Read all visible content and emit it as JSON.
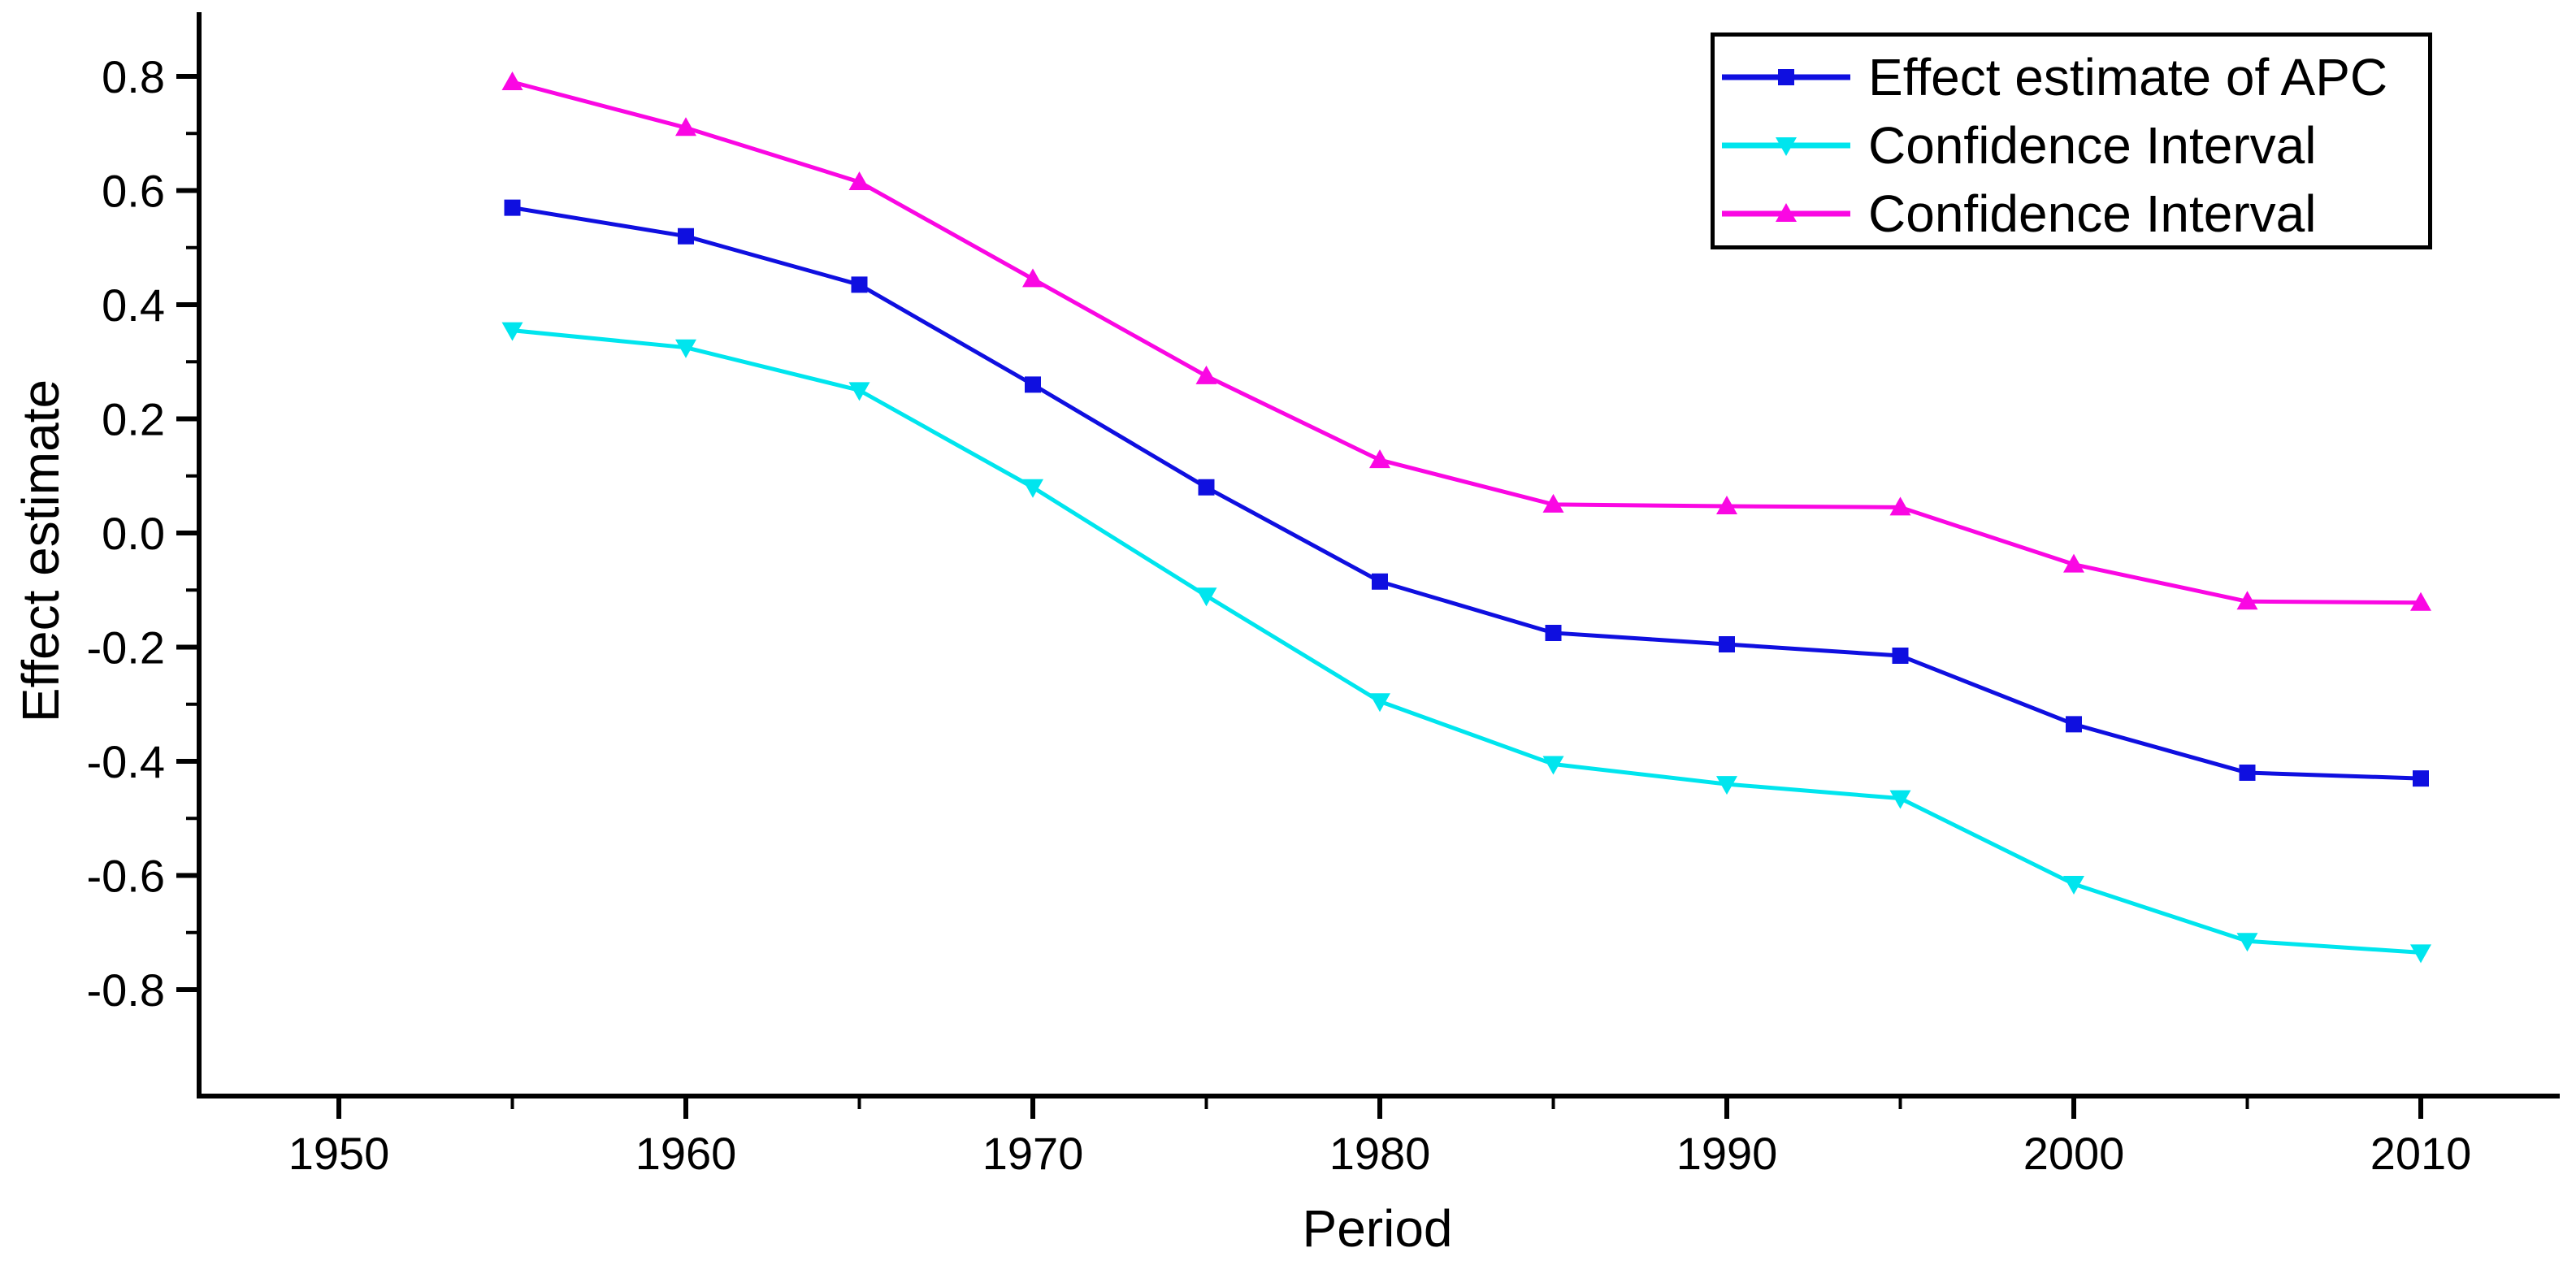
{
  "chart_data": {
    "type": "line",
    "x": [
      1955,
      1960,
      1965,
      1970,
      1975,
      1980,
      1985,
      1990,
      1995,
      2000,
      2005,
      2010
    ],
    "series": [
      {
        "name": "Effect estimate of APC",
        "color": "#0f0fe0",
        "marker": "square",
        "values": [
          0.57,
          0.52,
          0.435,
          0.26,
          0.08,
          -0.085,
          -0.175,
          -0.195,
          -0.215,
          -0.335,
          -0.42,
          -0.43
        ]
      },
      {
        "name": "Confidence Interval",
        "color": "#00e5ee",
        "marker": "triangle-down",
        "values": [
          0.355,
          0.325,
          0.25,
          0.08,
          -0.11,
          -0.295,
          -0.405,
          -0.44,
          -0.465,
          -0.615,
          -0.715,
          -0.735
        ]
      },
      {
        "name": "Confidence Interval",
        "color": "#fa07e3",
        "marker": "triangle-up",
        "values": [
          0.79,
          0.71,
          0.615,
          0.445,
          0.275,
          0.128,
          0.05,
          0.047,
          0.045,
          -0.055,
          -0.12,
          -0.122
        ]
      }
    ],
    "xlabel": "Period",
    "ylabel": "Effect estimate",
    "x_ticks_major": [
      1950,
      1960,
      1970,
      1980,
      1990,
      2000,
      2010
    ],
    "x_ticks_minor": [
      1955,
      1965,
      1975,
      1985,
      1995,
      2005
    ],
    "y_ticks_major": [
      0.8,
      0.6,
      0.4,
      0.2,
      0.0,
      -0.2,
      -0.4,
      -0.6,
      -0.8
    ],
    "y_tick_labels": [
      "0.8",
      "0.6",
      "0.4",
      "0.2",
      "0.0",
      "-0.2",
      "-0.4",
      "-0.6",
      "-0.8"
    ],
    "y_ticks_minor": [
      0.7,
      0.5,
      0.3,
      0.1,
      -0.1,
      -0.3,
      -0.5,
      -0.7
    ],
    "xlim": [
      1946,
      2014
    ],
    "ylim": [
      -1.02,
      0.91
    ],
    "grid": false,
    "legend_position": "top-right",
    "background_color": "#ffffff",
    "axis_color": "#000000"
  }
}
